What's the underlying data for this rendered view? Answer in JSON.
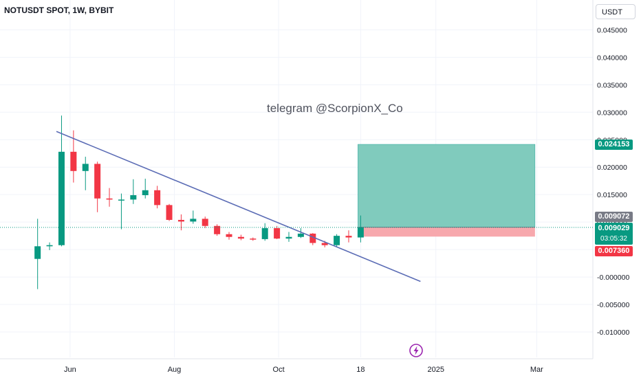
{
  "title": "NOTUSDT SPOT, 1W, BYBIT",
  "currency": "USDT",
  "watermark": "telegram @ScorpionX_Co",
  "price_tags": {
    "target": "0.024153",
    "entry": "0.009072",
    "last": "0.009029",
    "countdown": "03:05:32",
    "stop": "0.007360"
  },
  "colors": {
    "up": "#089981",
    "down": "#f23645",
    "trendline": "#5b6cb5",
    "target_zone": "#80cbbd",
    "stop_zone": "#f7a8ad",
    "last_price_line": "#089981"
  },
  "icons": {
    "event": "lightning-bolt-icon"
  },
  "chart_data": {
    "type": "candlestick",
    "title": "NOTUSDT SPOT, 1W, BYBIT",
    "y_axis": {
      "position": "right",
      "ylim": [
        -0.0115,
        0.0463
      ],
      "ticks": [
        "0.045000",
        "0.040000",
        "0.035000",
        "0.030000",
        "0.025000",
        "0.020000",
        "0.015000",
        "0.010000",
        "0.005000",
        "-0.000000",
        "-0.005000",
        "-0.010000"
      ]
    },
    "x_axis": {
      "range": [
        "2024-04-21",
        "2025-03-25"
      ],
      "ticks": [
        {
          "label": "Jun",
          "date": "2024-06-01"
        },
        {
          "label": "Aug",
          "date": "2024-08-01"
        },
        {
          "label": "Oct",
          "date": "2024-10-01"
        },
        {
          "label": "18",
          "date": "2024-11-18"
        },
        {
          "label": "2025",
          "date": "2025-01-01"
        },
        {
          "label": "Mar",
          "date": "2025-03-01"
        }
      ]
    },
    "grid": true,
    "candles": [
      {
        "date": "2024-05-13",
        "open": 0.0033,
        "high": 0.0106,
        "low": -0.0022,
        "close": 0.0056
      },
      {
        "date": "2024-05-20",
        "open": 0.0056,
        "high": 0.0063,
        "low": 0.0049,
        "close": 0.0058
      },
      {
        "date": "2024-05-27",
        "open": 0.0058,
        "high": 0.0294,
        "low": 0.0056,
        "close": 0.0228
      },
      {
        "date": "2024-06-03",
        "open": 0.0228,
        "high": 0.0267,
        "low": 0.0172,
        "close": 0.0193
      },
      {
        "date": "2024-06-10",
        "open": 0.0193,
        "high": 0.0219,
        "low": 0.0158,
        "close": 0.0206
      },
      {
        "date": "2024-06-17",
        "open": 0.0206,
        "high": 0.021,
        "low": 0.0118,
        "close": 0.0143
      },
      {
        "date": "2024-06-24",
        "open": 0.0143,
        "high": 0.0162,
        "low": 0.0128,
        "close": 0.0141
      },
      {
        "date": "2024-07-01",
        "open": 0.0141,
        "high": 0.0152,
        "low": 0.0087,
        "close": 0.0141
      },
      {
        "date": "2024-07-08",
        "open": 0.0141,
        "high": 0.0178,
        "low": 0.0133,
        "close": 0.0149
      },
      {
        "date": "2024-07-15",
        "open": 0.0149,
        "high": 0.0179,
        "low": 0.0143,
        "close": 0.0158
      },
      {
        "date": "2024-07-22",
        "open": 0.0158,
        "high": 0.0166,
        "low": 0.0125,
        "close": 0.0131
      },
      {
        "date": "2024-07-29",
        "open": 0.0131,
        "high": 0.0133,
        "low": 0.0102,
        "close": 0.0104
      },
      {
        "date": "2024-08-05",
        "open": 0.0104,
        "high": 0.0114,
        "low": 0.0085,
        "close": 0.0101
      },
      {
        "date": "2024-08-12",
        "open": 0.0101,
        "high": 0.0121,
        "low": 0.0097,
        "close": 0.0106
      },
      {
        "date": "2024-08-19",
        "open": 0.0106,
        "high": 0.011,
        "low": 0.0089,
        "close": 0.0093
      },
      {
        "date": "2024-08-26",
        "open": 0.0093,
        "high": 0.0096,
        "low": 0.0075,
        "close": 0.0078
      },
      {
        "date": "2024-09-02",
        "open": 0.0078,
        "high": 0.0082,
        "low": 0.0068,
        "close": 0.0073
      },
      {
        "date": "2024-09-09",
        "open": 0.0073,
        "high": 0.0077,
        "low": 0.0067,
        "close": 0.007
      },
      {
        "date": "2024-09-16",
        "open": 0.007,
        "high": 0.0072,
        "low": 0.0066,
        "close": 0.0069
      },
      {
        "date": "2024-09-23",
        "open": 0.0069,
        "high": 0.0098,
        "low": 0.0066,
        "close": 0.0089
      },
      {
        "date": "2024-09-30",
        "open": 0.0089,
        "high": 0.0093,
        "low": 0.0069,
        "close": 0.007
      },
      {
        "date": "2024-10-07",
        "open": 0.007,
        "high": 0.0082,
        "low": 0.0064,
        "close": 0.0073
      },
      {
        "date": "2024-10-14",
        "open": 0.0073,
        "high": 0.0089,
        "low": 0.0071,
        "close": 0.0079
      },
      {
        "date": "2024-10-21",
        "open": 0.0079,
        "high": 0.008,
        "low": 0.0058,
        "close": 0.0062
      },
      {
        "date": "2024-10-28",
        "open": 0.0062,
        "high": 0.0066,
        "low": 0.0054,
        "close": 0.0058
      },
      {
        "date": "2024-11-04",
        "open": 0.0058,
        "high": 0.0078,
        "low": 0.0055,
        "close": 0.0075
      },
      {
        "date": "2024-11-11",
        "open": 0.0075,
        "high": 0.0085,
        "low": 0.0063,
        "close": 0.0072
      },
      {
        "date": "2024-11-18",
        "open": 0.0072,
        "high": 0.0112,
        "low": 0.0063,
        "close": 0.009029
      }
    ],
    "trendline": [
      {
        "date": "2024-05-24",
        "value": 0.0265
      },
      {
        "date": "2024-12-23",
        "value": -0.0008
      }
    ],
    "position": {
      "type": "long",
      "start": "2024-11-18",
      "end": "2025-02-28",
      "entry": 0.009072,
      "target": 0.024153,
      "stop": 0.00736
    },
    "last_price": 0.009029,
    "event_marker_date": "2024-11-18"
  }
}
